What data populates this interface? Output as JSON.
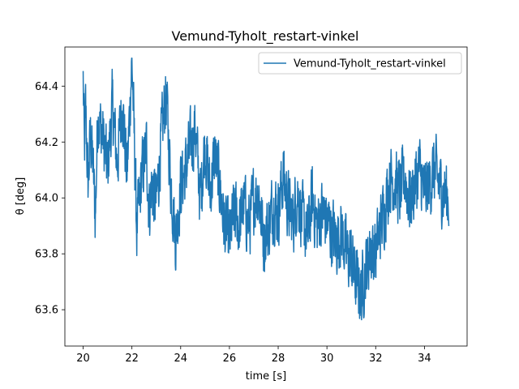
{
  "chart_data": {
    "type": "line",
    "title": "Vemund-Tyholt_restart-vinkel",
    "xlabel": "time [s]",
    "ylabel": "θ [deg]",
    "xlim": [
      19.25,
      35.75
    ],
    "ylim": [
      63.47,
      64.54
    ],
    "xticks": [
      20,
      22,
      24,
      26,
      28,
      30,
      32,
      34
    ],
    "yticks": [
      63.6,
      63.8,
      64.0,
      64.2,
      64.4
    ],
    "ytick_labels": [
      "63.6",
      "63.8",
      "64.0",
      "64.2",
      "64.4"
    ],
    "grid": false,
    "legend_position": "top-right",
    "color": "#1f77b4",
    "series": [
      {
        "name": "Vemund-Tyholt_restart-vinkel",
        "x_range": [
          20,
          35
        ],
        "anchors": [
          [
            20.0,
            64.42
          ],
          [
            20.05,
            64.15
          ],
          [
            20.1,
            64.32
          ],
          [
            20.2,
            64.05
          ],
          [
            20.3,
            64.22
          ],
          [
            20.4,
            64.12
          ],
          [
            20.5,
            63.93
          ],
          [
            20.6,
            64.3
          ],
          [
            20.8,
            64.22
          ],
          [
            21.0,
            64.1
          ],
          [
            21.2,
            64.33
          ],
          [
            21.4,
            64.12
          ],
          [
            21.6,
            64.35
          ],
          [
            21.8,
            64.08
          ],
          [
            22.0,
            64.5
          ],
          [
            22.1,
            64.2
          ],
          [
            22.2,
            63.88
          ],
          [
            22.4,
            64.08
          ],
          [
            22.6,
            64.18
          ],
          [
            22.7,
            63.95
          ],
          [
            22.8,
            64.05
          ],
          [
            23.0,
            63.98
          ],
          [
            23.2,
            64.2
          ],
          [
            23.4,
            64.38
          ],
          [
            23.6,
            64.05
          ],
          [
            23.8,
            63.85
          ],
          [
            24.0,
            64.05
          ],
          [
            24.2,
            64.1
          ],
          [
            24.4,
            64.18
          ],
          [
            24.6,
            64.25
          ],
          [
            24.8,
            64.0
          ],
          [
            25.0,
            64.2
          ],
          [
            25.2,
            64.02
          ],
          [
            25.4,
            64.15
          ],
          [
            25.6,
            64.05
          ],
          [
            25.8,
            63.9
          ],
          [
            26.0,
            63.85
          ],
          [
            26.2,
            63.95
          ],
          [
            26.4,
            63.9
          ],
          [
            26.6,
            63.98
          ],
          [
            26.8,
            63.9
          ],
          [
            27.0,
            64.0
          ],
          [
            27.2,
            64.02
          ],
          [
            27.4,
            63.85
          ],
          [
            27.6,
            63.9
          ],
          [
            27.8,
            63.98
          ],
          [
            28.0,
            63.95
          ],
          [
            28.2,
            64.08
          ],
          [
            28.4,
            63.98
          ],
          [
            28.6,
            63.92
          ],
          [
            28.8,
            64.02
          ],
          [
            29.0,
            63.92
          ],
          [
            29.2,
            63.85
          ],
          [
            29.4,
            64.0
          ],
          [
            29.6,
            63.9
          ],
          [
            29.8,
            63.95
          ],
          [
            30.0,
            63.92
          ],
          [
            30.2,
            63.88
          ],
          [
            30.4,
            63.85
          ],
          [
            30.6,
            63.88
          ],
          [
            30.8,
            63.8
          ],
          [
            31.0,
            63.78
          ],
          [
            31.2,
            63.7
          ],
          [
            31.4,
            63.66
          ],
          [
            31.6,
            63.75
          ],
          [
            31.8,
            63.82
          ],
          [
            32.0,
            63.8
          ],
          [
            32.2,
            63.9
          ],
          [
            32.4,
            63.98
          ],
          [
            32.6,
            64.08
          ],
          [
            32.8,
            64.05
          ],
          [
            33.0,
            64.02
          ],
          [
            33.2,
            64.08
          ],
          [
            33.4,
            63.98
          ],
          [
            33.6,
            64.05
          ],
          [
            33.8,
            64.1
          ],
          [
            34.0,
            64.02
          ],
          [
            34.2,
            64.05
          ],
          [
            34.4,
            64.1
          ],
          [
            34.6,
            64.05
          ],
          [
            34.8,
            64.02
          ],
          [
            35.0,
            64.0
          ]
        ]
      }
    ]
  }
}
